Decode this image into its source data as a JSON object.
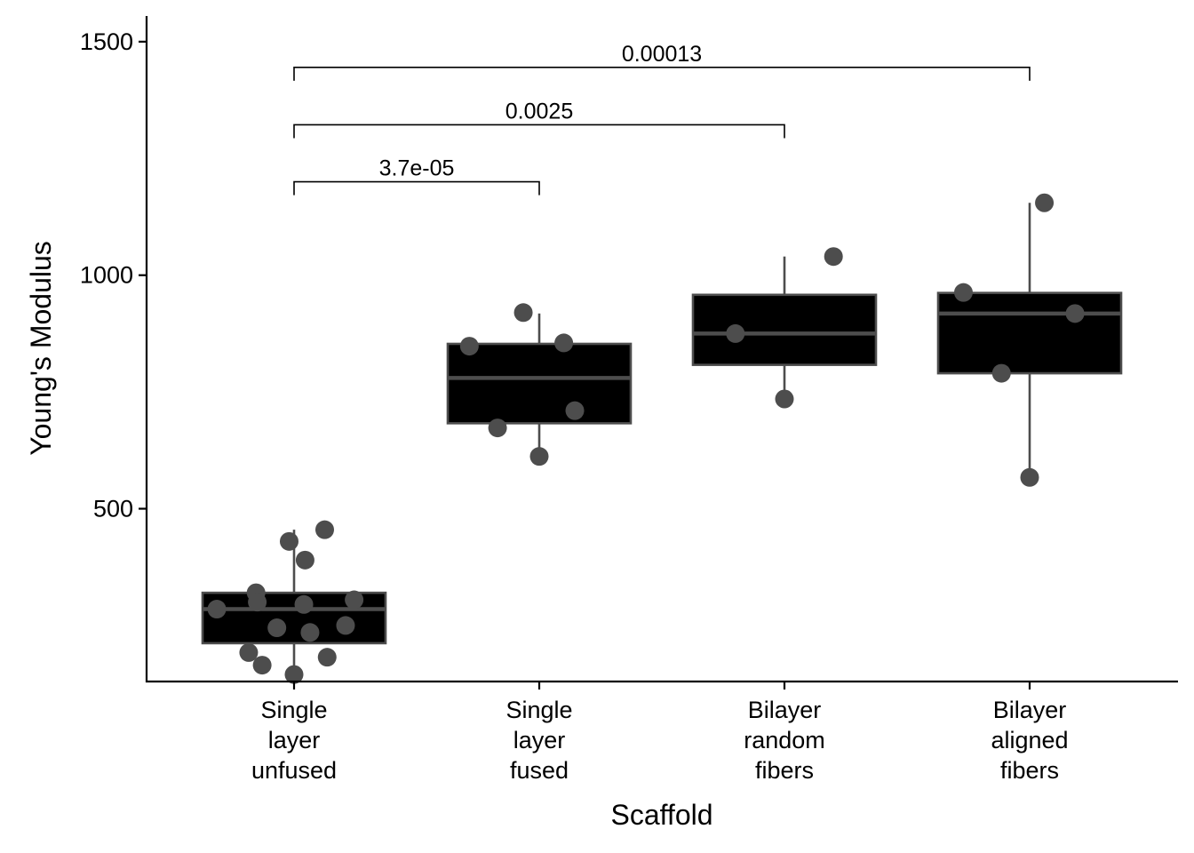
{
  "chart_data": {
    "type": "boxplot",
    "xlabel": "Scaffold",
    "ylabel": "Young's Modulus",
    "ylim": [
      130,
      1555
    ],
    "yticks": [
      500,
      1000,
      1500
    ],
    "grid": false,
    "legend": "none",
    "colors": {
      "box_fill": "#000000",
      "box_line": "#4d4d4d",
      "point": "#4d4d4d",
      "axis": "#000000"
    },
    "categories": [
      {
        "label": [
          "Single",
          "layer",
          "unfused"
        ],
        "box": {
          "q1": 212,
          "median": 285,
          "q3": 320,
          "whisker_low": 140,
          "whisker_high": 455
        },
        "points": [
          {
            "x": -0.315,
            "y": 285
          },
          {
            "x": -0.155,
            "y": 320
          },
          {
            "x": -0.15,
            "y": 300
          },
          {
            "x": -0.185,
            "y": 192
          },
          {
            "x": -0.13,
            "y": 165
          },
          {
            "x": -0.07,
            "y": 245
          },
          {
            "x": -0.02,
            "y": 430
          },
          {
            "x": 0.0,
            "y": 145
          },
          {
            "x": 0.04,
            "y": 295
          },
          {
            "x": 0.045,
            "y": 390
          },
          {
            "x": 0.065,
            "y": 235
          },
          {
            "x": 0.125,
            "y": 455
          },
          {
            "x": 0.135,
            "y": 182
          },
          {
            "x": 0.21,
            "y": 250
          },
          {
            "x": 0.245,
            "y": 305
          }
        ]
      },
      {
        "label": [
          "Single",
          "layer",
          "fused"
        ],
        "box": {
          "q1": 683,
          "median": 780,
          "q3": 853,
          "whisker_low": 610,
          "whisker_high": 918
        },
        "points": [
          {
            "x": -0.285,
            "y": 848
          },
          {
            "x": -0.17,
            "y": 673
          },
          {
            "x": -0.065,
            "y": 920
          },
          {
            "x": 0.0,
            "y": 612
          },
          {
            "x": 0.1,
            "y": 855
          },
          {
            "x": 0.145,
            "y": 710
          }
        ]
      },
      {
        "label": [
          "Bilayer",
          "random",
          "fibers"
        ],
        "box": {
          "q1": 808,
          "median": 875,
          "q3": 958,
          "whisker_low": 735,
          "whisker_high": 1040
        },
        "points": [
          {
            "x": -0.2,
            "y": 875
          },
          {
            "x": 0.0,
            "y": 735
          },
          {
            "x": 0.2,
            "y": 1040
          }
        ]
      },
      {
        "label": [
          "Bilayer",
          "aligned",
          "fibers"
        ],
        "box": {
          "q1": 790,
          "median": 918,
          "q3": 962,
          "whisker_low": 567,
          "whisker_high": 1155
        },
        "points": [
          {
            "x": -0.27,
            "y": 963
          },
          {
            "x": -0.115,
            "y": 790
          },
          {
            "x": 0.0,
            "y": 567
          },
          {
            "x": 0.185,
            "y": 918
          },
          {
            "x": 0.06,
            "y": 1155
          }
        ]
      }
    ],
    "comparisons": [
      {
        "from": 0,
        "to": 1,
        "y": 1200,
        "label": "3.7e-05"
      },
      {
        "from": 0,
        "to": 2,
        "y": 1322,
        "label": "0.0025"
      },
      {
        "from": 0,
        "to": 3,
        "y": 1445,
        "label": "0.00013"
      }
    ]
  }
}
